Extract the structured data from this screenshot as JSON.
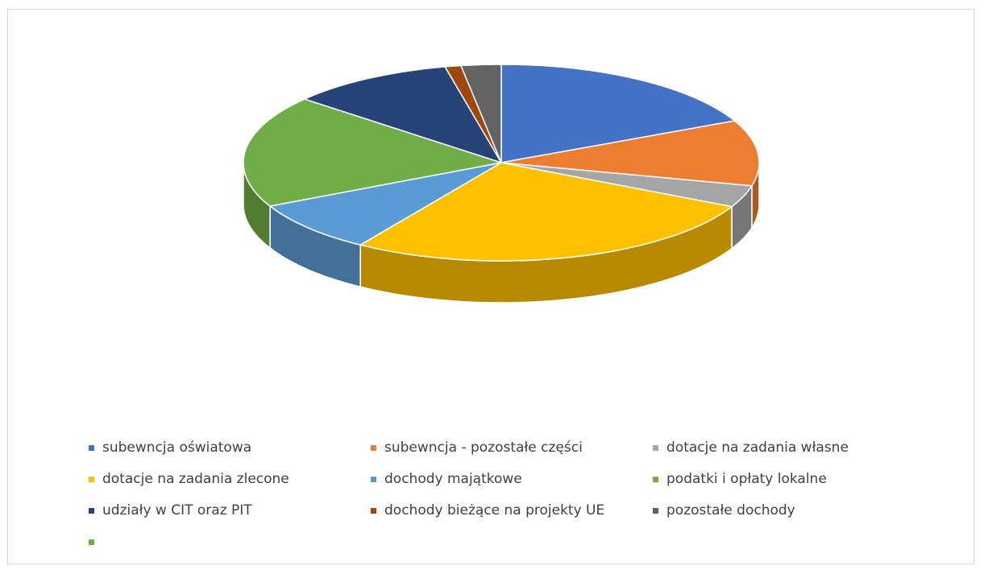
{
  "chart_data": {
    "type": "pie",
    "three_d": true,
    "legend_position": "bottom",
    "title": "",
    "slices": [
      {
        "label": "subewncja oświatowa",
        "value": 18.0,
        "color": "#4472c4"
      },
      {
        "label": "subewncja - pozostałe części",
        "value": 10.8,
        "color": "#ed7d31"
      },
      {
        "label": "dotacje na zadania własne",
        "value": 3.6,
        "color": "#a5a5a5"
      },
      {
        "label": "dotacje na zadania zlecone",
        "value": 26.8,
        "color": "#ffc000"
      },
      {
        "label": "dochody majątkowe",
        "value": 8.5,
        "color": "#5b9bd5"
      },
      {
        "label": "podatki i opłaty lokalne",
        "value": 18.5,
        "color": "#70ad47"
      },
      {
        "label": "udziały w CIT oraz PIT",
        "value": 10.3,
        "color": "#264478"
      },
      {
        "label": "dochody bieżące na projekty UE",
        "value": 1.0,
        "color": "#9e480e"
      },
      {
        "label": "pozostałe dochody",
        "value": 2.5,
        "color": "#636363"
      }
    ],
    "extra_legend_entries": [
      {
        "label": "",
        "color": "#70ad47"
      }
    ]
  }
}
